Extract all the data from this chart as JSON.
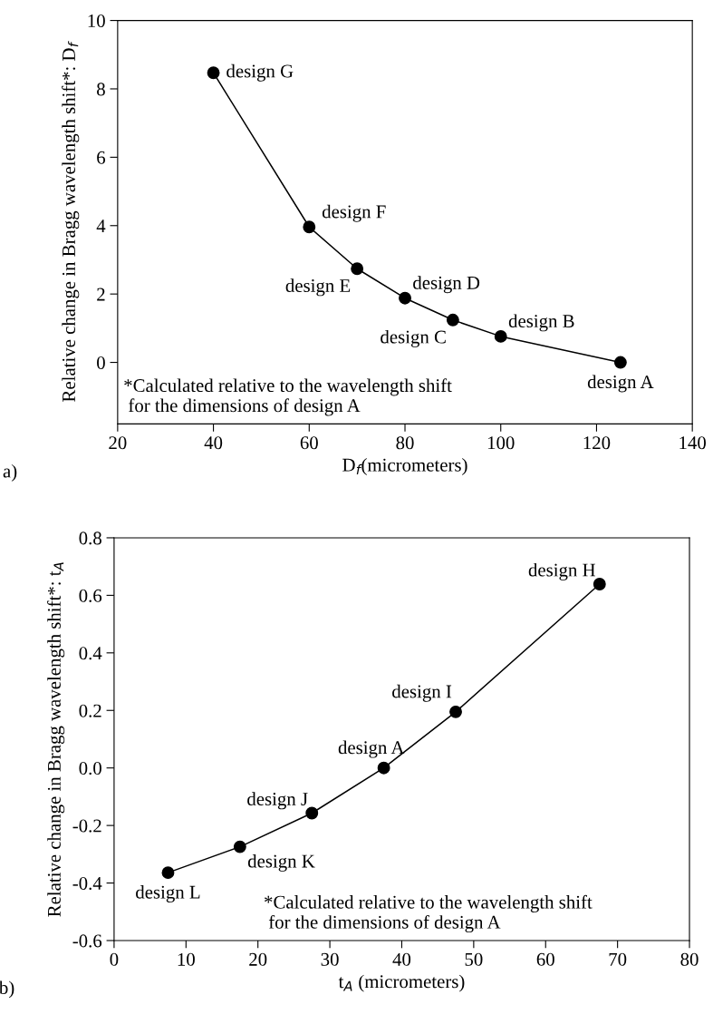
{
  "chart_data": [
    {
      "type": "line",
      "xlabel": "D$_{f}$(micrometers)",
      "ylabel": "Relative change in Bragg wavelength shift*: D$_{f}$",
      "x": [
        40,
        60,
        70,
        80,
        90,
        100,
        125
      ],
      "series": [
        {
          "color": "#000000",
          "values": [
            8.47,
            3.96,
            2.74,
            1.88,
            1.24,
            0.76,
            0
          ]
        }
      ],
      "marker": "circle",
      "line_style": "solid",
      "grid": false,
      "xlim": [
        20,
        140
      ],
      "xticks": [
        20,
        40,
        60,
        80,
        100,
        120,
        140
      ],
      "ylim": [
        -1.8,
        10
      ],
      "yticks": [
        0,
        2,
        4,
        6,
        8,
        10
      ],
      "annotations": [
        {
          "text": "design G",
          "x": 40,
          "y": 8.47
        },
        {
          "text": "design F",
          "x": 60,
          "y": 3.96
        },
        {
          "text": "design E",
          "x": 70,
          "y": 2.74
        },
        {
          "text": "design D",
          "x": 80,
          "y": 1.88
        },
        {
          "text": "design C",
          "x": 90,
          "y": 1.24
        },
        {
          "text": "design B",
          "x": 100,
          "y": 0.76
        },
        {
          "text": "design A",
          "x": 125,
          "y": 0
        },
        "*Calculated relative to the wavelength shift\n for the dimensions of design A",
        "a)"
      ]
    },
    {
      "type": "line",
      "xlabel": "t$_{A}$ (micrometers)",
      "ylabel": "Relative change in Bragg wavelength shift*: t$_{A}$",
      "x": [
        7.5,
        17.5,
        27.5,
        37.5,
        47.5,
        67.5
      ],
      "series": [
        {
          "color": "#000000",
          "values": [
            -0.364,
            -0.274,
            -0.157,
            0,
            0.195,
            0.639
          ]
        }
      ],
      "marker": "circle",
      "line_style": "solid",
      "grid": false,
      "xlim": [
        0,
        80
      ],
      "xticks": [
        0,
        10,
        20,
        30,
        40,
        50,
        60,
        70,
        80
      ],
      "ylim": [
        -0.6,
        0.8
      ],
      "yticks": [
        {
          "value": -0.6,
          "label": "-0.6"
        },
        {
          "value": -0.4,
          "label": "-0.4"
        },
        {
          "value": -0.2,
          "label": "-0.2"
        },
        {
          "value": 0,
          "label": "0.0"
        },
        {
          "value": 0.2,
          "label": "0.2"
        },
        {
          "value": 0.4,
          "label": "0.4"
        },
        {
          "value": 0.6,
          "label": "0.6"
        },
        {
          "value": 0.8,
          "label": "0.8"
        }
      ],
      "annotations": [
        {
          "text": "design L",
          "x": 7.5,
          "y": -0.364
        },
        {
          "text": "design K",
          "x": 17.5,
          "y": -0.274
        },
        {
          "text": "design J",
          "x": 27.5,
          "y": -0.157
        },
        {
          "text": "design A",
          "x": 37.5,
          "y": 0
        },
        {
          "text": "design I",
          "x": 47.5,
          "y": 0.195
        },
        {
          "text": "design H",
          "x": 67.5,
          "y": 0.639
        },
        "*Calculated relative to the wavelength shift\n for the dimensions of design A",
        "b)"
      ]
    }
  ]
}
